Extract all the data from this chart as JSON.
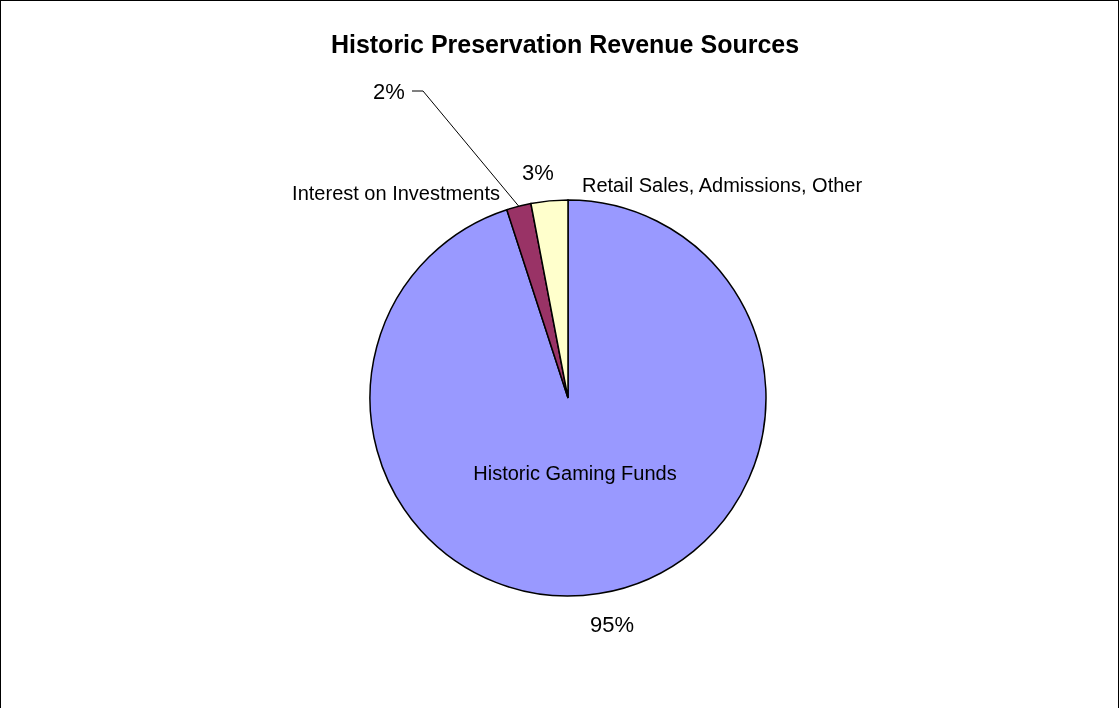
{
  "chart_data": {
    "type": "pie",
    "title": "Historic Preservation Revenue Sources",
    "categories": [
      "Historic Gaming Funds",
      "Interest on Investments",
      "Retail Sales, Admissions, Other"
    ],
    "values": [
      95,
      2,
      3
    ],
    "colors": [
      "#9999ff",
      "#993366",
      "#ffffcc"
    ],
    "value_labels": [
      "95%",
      "2%",
      "3%"
    ]
  }
}
